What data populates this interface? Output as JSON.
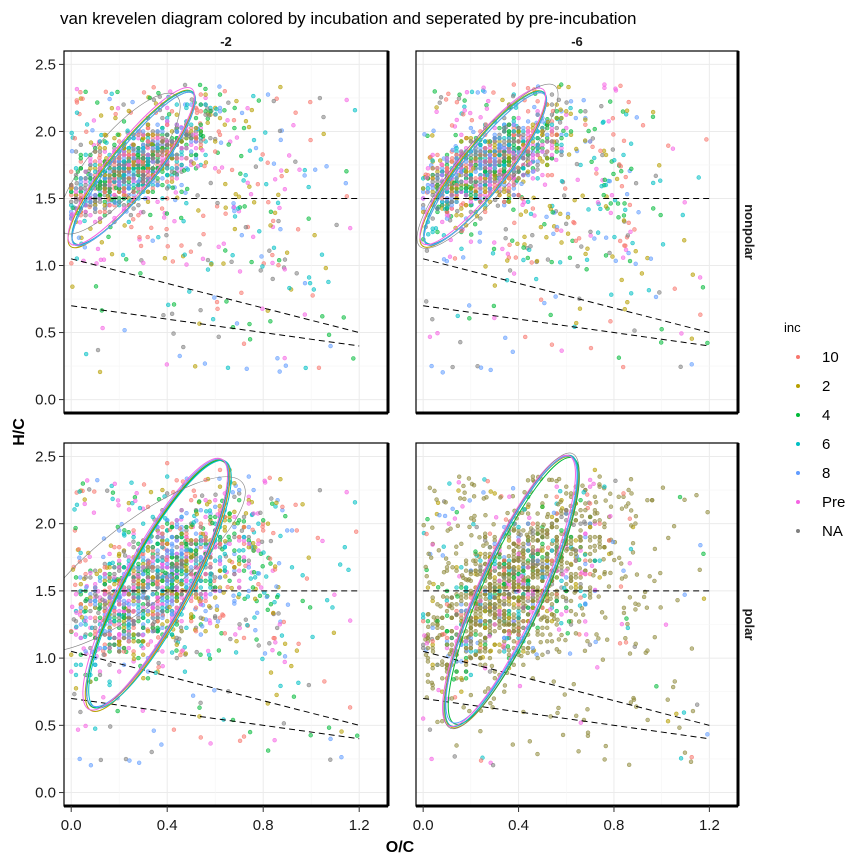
{
  "chart_data": {
    "type": "scatter",
    "title": "van krevelen diagram colored by incubation and seperated by pre-incubation",
    "xlabel": "O/C",
    "ylabel": "H/C",
    "xlim": [
      -0.03,
      1.32
    ],
    "ylim": [
      -0.1,
      2.6
    ],
    "x_ticks": [
      0.0,
      0.4,
      0.8,
      1.2
    ],
    "x_tick_labels": [
      "0.0",
      "0.4",
      "0.8",
      "1.2"
    ],
    "y_ticks": [
      0.0,
      0.5,
      1.0,
      1.5,
      2.0,
      2.5
    ],
    "y_tick_labels": [
      "0.0",
      "0.5",
      "1.0",
      "1.5",
      "2.0",
      "2.5"
    ],
    "grid": true,
    "facet_columns": [
      "-2",
      "-6"
    ],
    "facet_rows": [
      "nonpolar",
      "polar"
    ],
    "legend": {
      "title": "inc",
      "position": "right",
      "entries": [
        {
          "label": "10",
          "color": "#F8766D"
        },
        {
          "label": "2",
          "color": "#B79F00"
        },
        {
          "label": "4",
          "color": "#00BA38"
        },
        {
          "label": "6",
          "color": "#00BFC4"
        },
        {
          "label": "8",
          "color": "#619CFF"
        },
        {
          "label": "Pre",
          "color": "#F564E3"
        },
        {
          "label": "NA",
          "color": "#7F7F7F"
        }
      ]
    },
    "reference_lines": [
      {
        "x": [
          0.0,
          1.2
        ],
        "y": [
          1.5,
          1.5
        ]
      },
      {
        "x": [
          0.0,
          1.2
        ],
        "y": [
          1.05,
          0.5
        ]
      },
      {
        "x": [
          0.0,
          1.2
        ],
        "y": [
          0.7,
          0.4
        ]
      }
    ],
    "panels": [
      {
        "column": "-2",
        "row": "nonpolar",
        "dominant": "mixed",
        "ellipses": [
          {
            "cx": 0.26,
            "cy": 1.73,
            "rx": 0.4,
            "ry": 0.17,
            "angle": -52,
            "color": "#F8766D"
          },
          {
            "cx": 0.25,
            "cy": 1.72,
            "rx": 0.41,
            "ry": 0.17,
            "angle": -52,
            "color": "#B79F00"
          },
          {
            "cx": 0.26,
            "cy": 1.72,
            "rx": 0.4,
            "ry": 0.16,
            "angle": -52,
            "color": "#00BA38"
          },
          {
            "cx": 0.26,
            "cy": 1.73,
            "rx": 0.4,
            "ry": 0.17,
            "angle": -52,
            "color": "#00BFC4"
          },
          {
            "cx": 0.26,
            "cy": 1.72,
            "rx": 0.4,
            "ry": 0.16,
            "angle": -52,
            "color": "#619CFF"
          },
          {
            "cx": 0.25,
            "cy": 1.74,
            "rx": 0.41,
            "ry": 0.17,
            "angle": -52,
            "color": "#F564E3"
          },
          {
            "cx": 0.2,
            "cy": 1.76,
            "rx": 0.37,
            "ry": 0.21,
            "angle": -50,
            "color": "#7F7F7F"
          }
        ]
      },
      {
        "column": "-6",
        "row": "nonpolar",
        "dominant": "mixed",
        "ellipses": [
          {
            "cx": 0.26,
            "cy": 1.73,
            "rx": 0.4,
            "ry": 0.17,
            "angle": -52,
            "color": "#F8766D"
          },
          {
            "cx": 0.25,
            "cy": 1.72,
            "rx": 0.41,
            "ry": 0.17,
            "angle": -52,
            "color": "#B79F00"
          },
          {
            "cx": 0.26,
            "cy": 1.72,
            "rx": 0.4,
            "ry": 0.16,
            "angle": -52,
            "color": "#00BA38"
          },
          {
            "cx": 0.26,
            "cy": 1.73,
            "rx": 0.4,
            "ry": 0.17,
            "angle": -52,
            "color": "#00BFC4"
          },
          {
            "cx": 0.26,
            "cy": 1.72,
            "rx": 0.4,
            "ry": 0.16,
            "angle": -52,
            "color": "#619CFF"
          },
          {
            "cx": 0.25,
            "cy": 1.74,
            "rx": 0.41,
            "ry": 0.17,
            "angle": -52,
            "color": "#F564E3"
          },
          {
            "cx": 0.27,
            "cy": 1.74,
            "rx": 0.44,
            "ry": 0.2,
            "angle": -50,
            "color": "#7F7F7F"
          }
        ]
      },
      {
        "column": "-2",
        "row": "polar",
        "dominant": "mixed",
        "ellipses": [
          {
            "cx": 0.36,
            "cy": 1.55,
            "rx": 0.58,
            "ry": 0.24,
            "angle": -62,
            "color": "#F8766D"
          },
          {
            "cx": 0.36,
            "cy": 1.54,
            "rx": 0.59,
            "ry": 0.24,
            "angle": -62,
            "color": "#B79F00"
          },
          {
            "cx": 0.36,
            "cy": 1.55,
            "rx": 0.58,
            "ry": 0.23,
            "angle": -62,
            "color": "#00BA38"
          },
          {
            "cx": 0.37,
            "cy": 1.55,
            "rx": 0.58,
            "ry": 0.24,
            "angle": -62,
            "color": "#00BFC4"
          },
          {
            "cx": 0.36,
            "cy": 1.56,
            "rx": 0.58,
            "ry": 0.24,
            "angle": -62,
            "color": "#619CFF"
          },
          {
            "cx": 0.35,
            "cy": 1.55,
            "rx": 0.59,
            "ry": 0.24,
            "angle": -62,
            "color": "#F564E3"
          },
          {
            "cx": 0.28,
            "cy": 1.7,
            "rx": 0.55,
            "ry": 0.3,
            "angle": -38,
            "color": "#7F7F7F"
          }
        ]
      },
      {
        "column": "-6",
        "row": "polar",
        "dominant": "olive",
        "ellipses": [
          {
            "cx": 0.37,
            "cy": 1.5,
            "rx": 0.62,
            "ry": 0.23,
            "angle": -66,
            "color": "#F8766D"
          },
          {
            "cx": 0.37,
            "cy": 1.49,
            "rx": 0.62,
            "ry": 0.24,
            "angle": -66,
            "color": "#B79F00"
          },
          {
            "cx": 0.38,
            "cy": 1.5,
            "rx": 0.61,
            "ry": 0.23,
            "angle": -66,
            "color": "#00BA38"
          },
          {
            "cx": 0.37,
            "cy": 1.5,
            "rx": 0.62,
            "ry": 0.23,
            "angle": -66,
            "color": "#00BFC4"
          },
          {
            "cx": 0.37,
            "cy": 1.51,
            "rx": 0.61,
            "ry": 0.23,
            "angle": -66,
            "color": "#619CFF"
          },
          {
            "cx": 0.36,
            "cy": 1.5,
            "rx": 0.62,
            "ry": 0.23,
            "angle": -66,
            "color": "#F564E3"
          },
          {
            "cx": 0.37,
            "cy": 1.5,
            "rx": 0.63,
            "ry": 0.24,
            "angle": -66,
            "color": "#7F7F7F"
          }
        ]
      }
    ]
  }
}
